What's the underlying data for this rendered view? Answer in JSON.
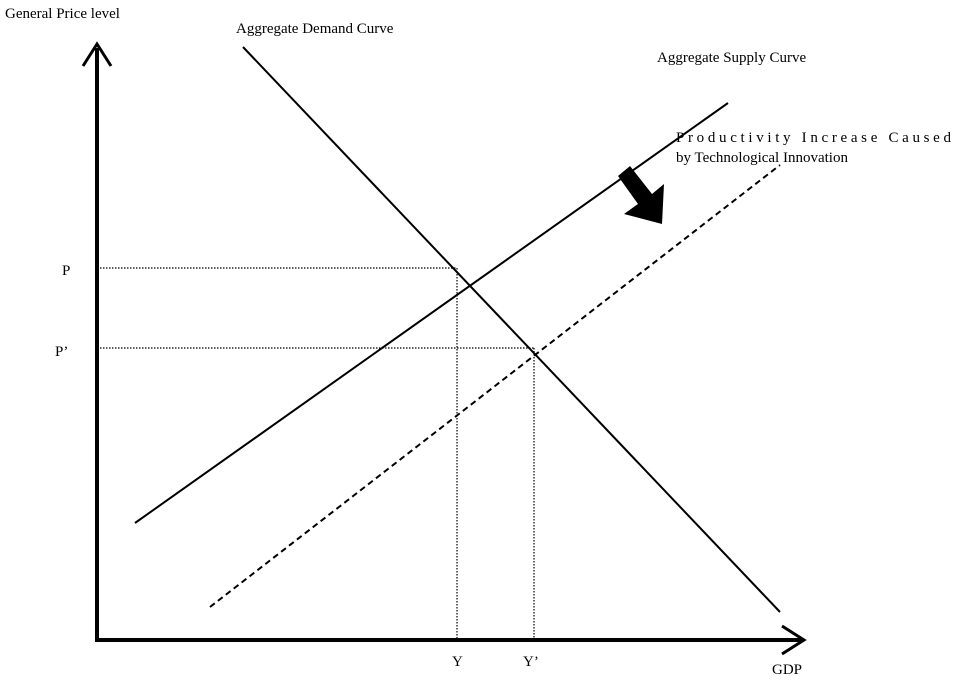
{
  "axis_labels": {
    "y": "General Price level",
    "x": "GDP"
  },
  "curves": {
    "demand": "Aggregate Demand Curve",
    "supply": "Aggregate Supply Curve",
    "shift": [
      "Productivity  Increase  Caused",
      "by Technological Innovation"
    ]
  },
  "levels": {
    "p": "P",
    "p2": "P’",
    "y": "Y",
    "y2": "Y’"
  }
}
